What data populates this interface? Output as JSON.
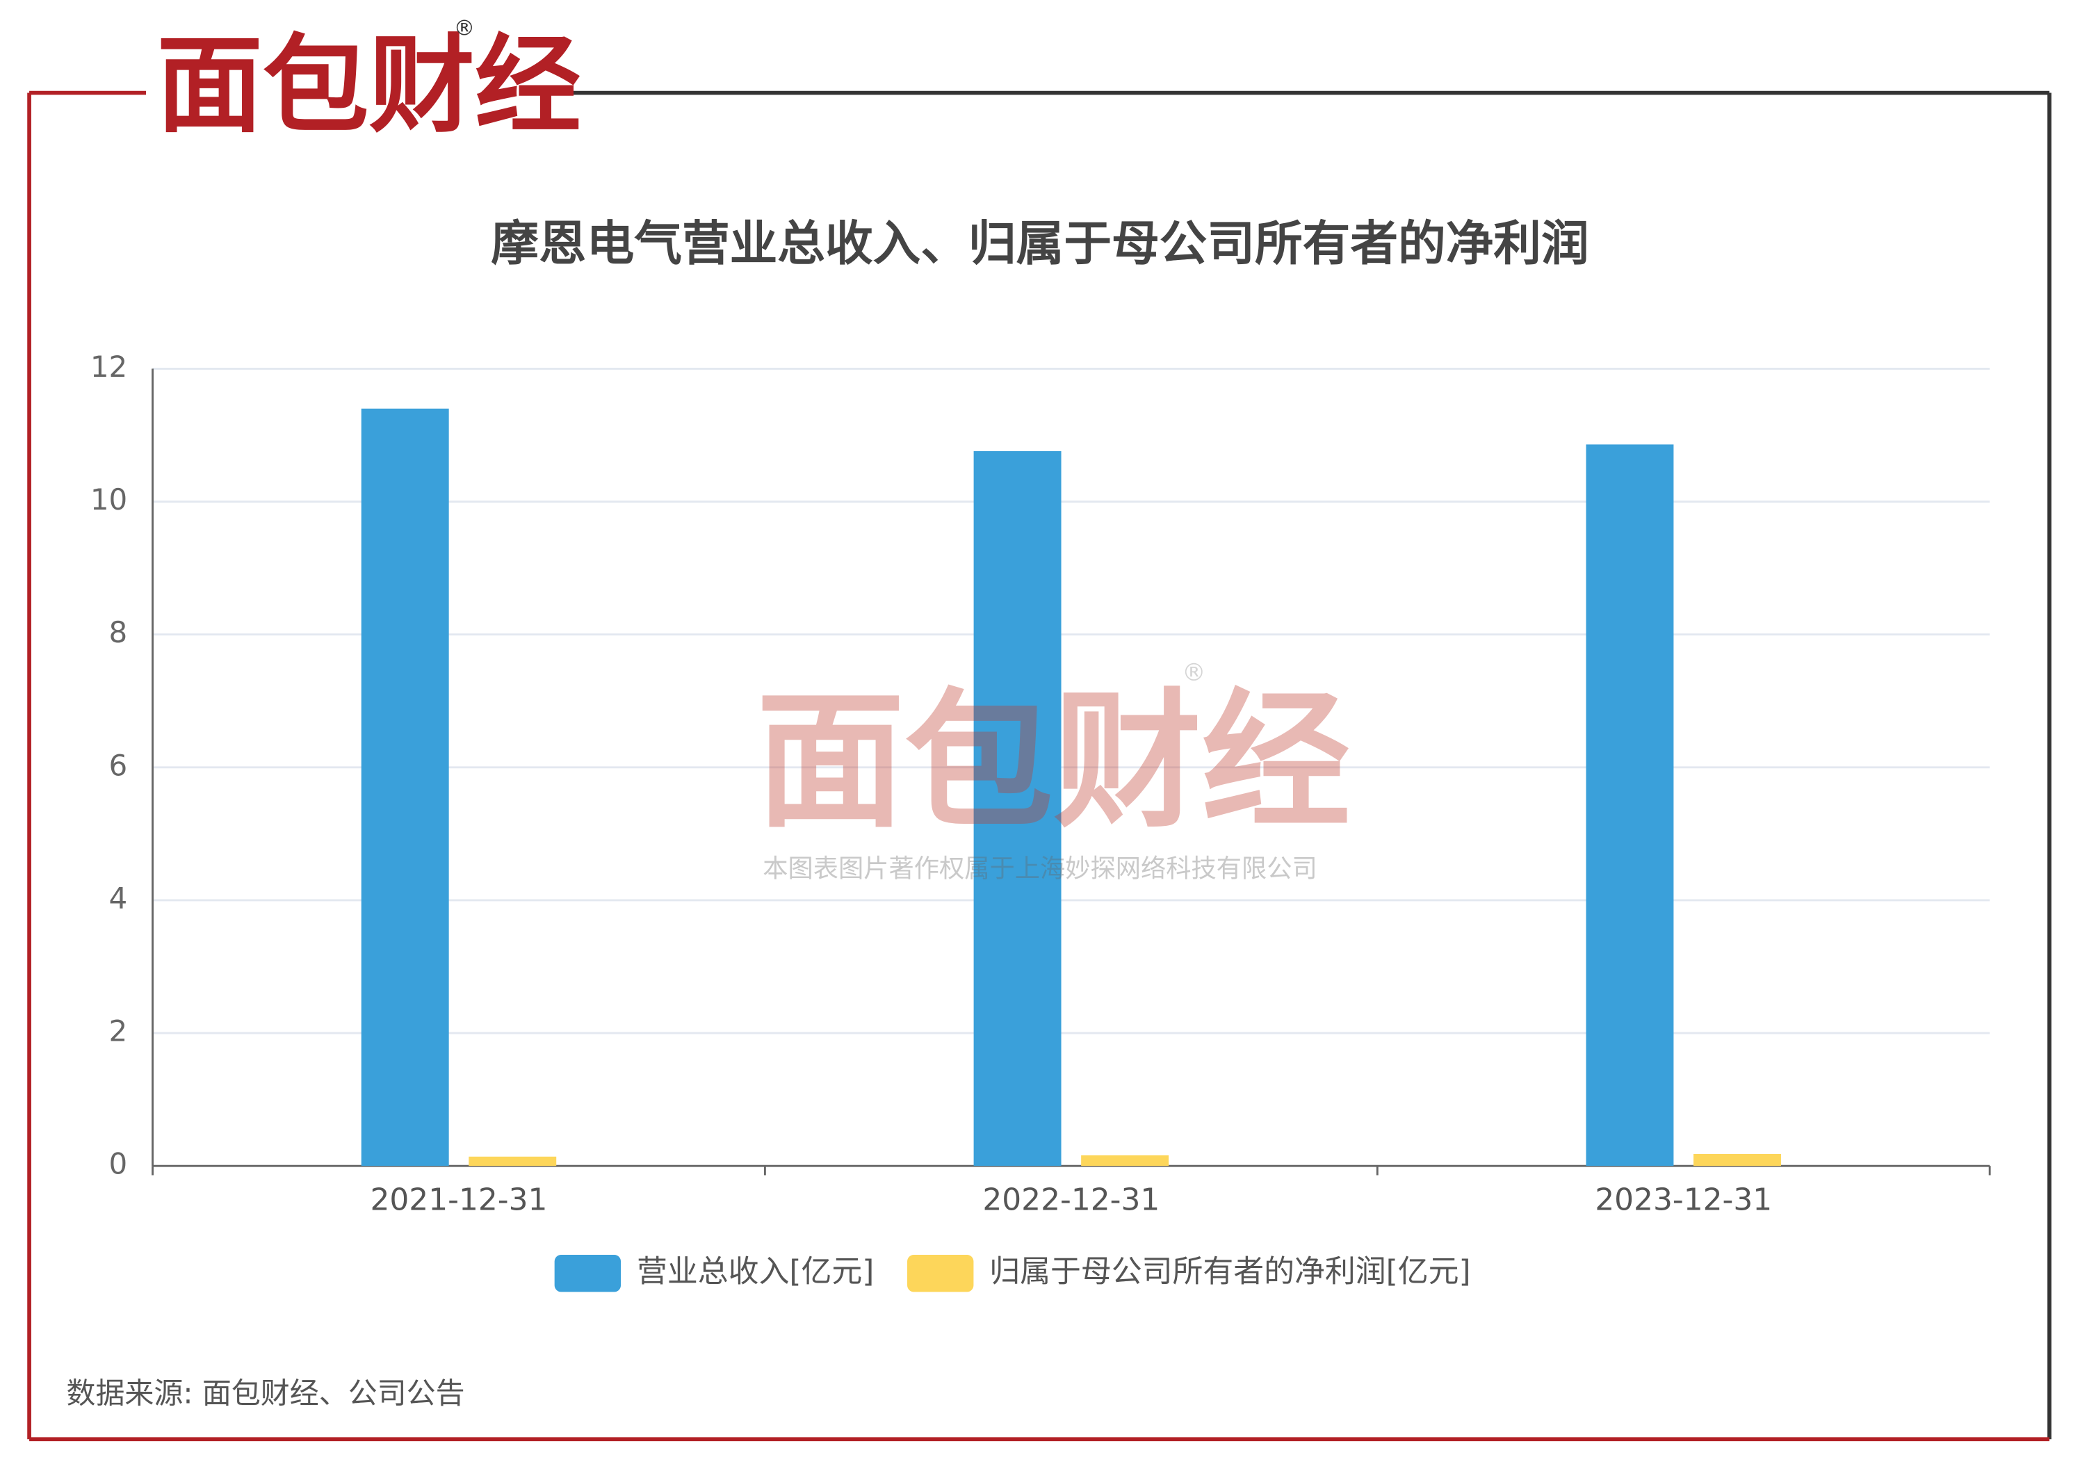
{
  "brand": {
    "logo": "面包财经",
    "mark": "®"
  },
  "watermark": {
    "logo": "面包财经",
    "mark": "®",
    "text": "本图表图片著作权属于上海妙探网络科技有限公司"
  },
  "source": "数据来源: 面包财经、公司公告",
  "chart_data": {
    "type": "bar",
    "title": "摩恩电气营业总收入、归属于母公司所有者的净利润",
    "categories": [
      "2021-12-31",
      "2022-12-31",
      "2023-12-31"
    ],
    "series": [
      {
        "name": "营业总收入[亿元]",
        "color": "#3aa0da",
        "values": [
          11.4,
          10.76,
          10.86
        ]
      },
      {
        "name": "归属于母公司所有者的净利润[亿元]",
        "color": "#fdd65a",
        "values": [
          0.14,
          0.16,
          0.18
        ]
      }
    ],
    "ylim": [
      0,
      12
    ],
    "yticks": [
      0,
      2,
      4,
      6,
      8,
      10,
      12
    ],
    "grid": true
  }
}
